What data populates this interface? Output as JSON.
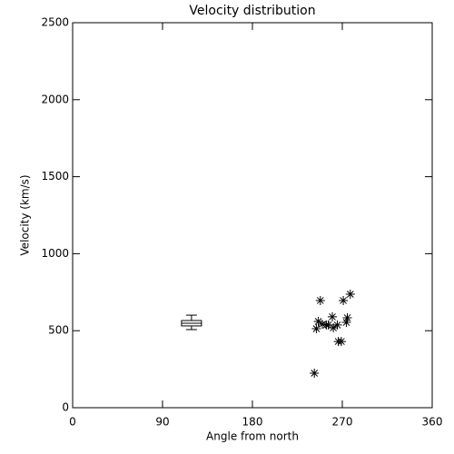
{
  "chart_data": {
    "type": "scatter",
    "title": "Velocity distribution",
    "x_label": "Angle from north",
    "y_label": "Velocity (km/s)",
    "x": [
      242,
      244,
      246,
      248,
      250,
      254,
      256,
      260,
      261,
      265,
      266,
      269,
      271,
      274,
      275,
      278
    ],
    "values": [
      224,
      513,
      560,
      696,
      542,
      537,
      537,
      590,
      519,
      537,
      430,
      430,
      696,
      554,
      584,
      737
    ],
    "box": {
      "x": 119,
      "min": 507,
      "q1": 531,
      "median": 548,
      "q3": 566,
      "max": 601
    },
    "color": "#000000",
    "xlim": [
      0,
      360
    ],
    "xticks": [
      0,
      90,
      180,
      270,
      360
    ],
    "ylim": [
      0,
      2500
    ],
    "yticks": [
      0,
      500,
      1000,
      1500,
      2000,
      2500
    ]
  }
}
